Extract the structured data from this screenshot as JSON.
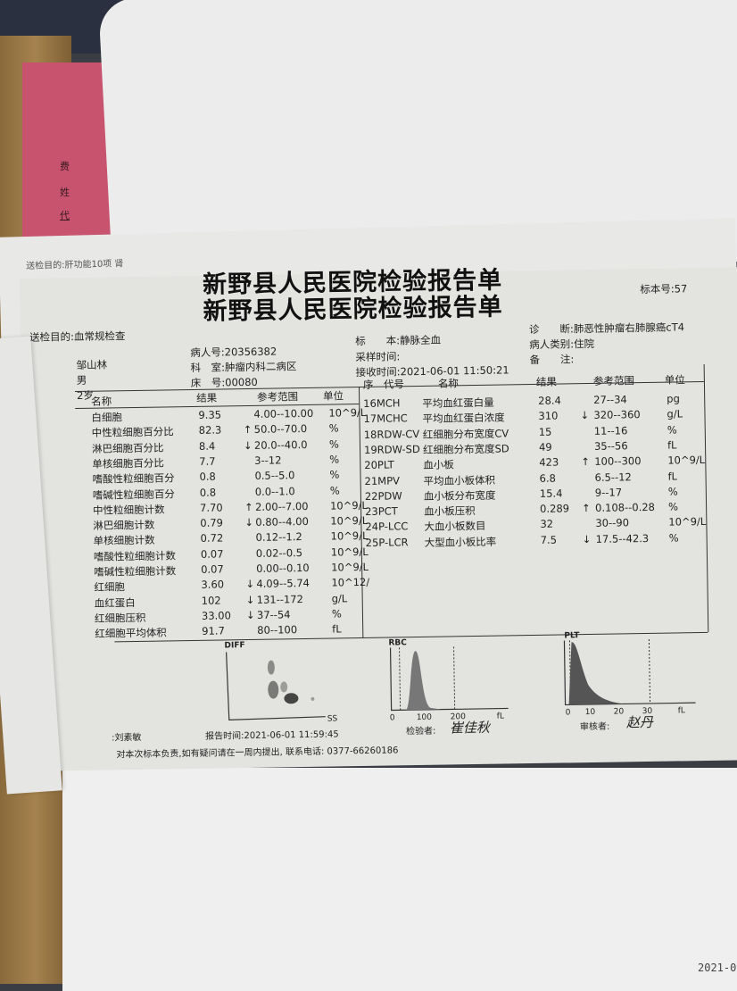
{
  "background": {
    "pink_folder_chars": [
      "费",
      "姓",
      "代"
    ],
    "back_sheet_purpose": "送检目的:肝功能10项 肾",
    "bottom_corner_date": "2021-0"
  },
  "report": {
    "title": "新野县人民医院检验报告单",
    "specimen_no": "标本号:57",
    "purpose": "送检目的:血常规检查",
    "patient": {
      "name": "邹山林",
      "sex": "男",
      "age": "2岁"
    },
    "patient_id": "病人号:20356382",
    "department": "科　室:肿瘤内科二病区",
    "bed": "床　号:00080",
    "specimen": "标　　本:静脉全血",
    "sampling_time": "采样时间:",
    "receive_time": "接收时间:2021-06-01 11:50:21",
    "diagnosis": "诊　　断:肺恶性肿瘤右肺腺癌cT4",
    "patient_type": "病人类别:住院",
    "remark": "备　　注:",
    "left_table": {
      "headers": {
        "name": "名称",
        "result": "结果",
        "range": "参考范围",
        "unit": "单位"
      },
      "rows": [
        {
          "name": "白细胞",
          "result": "9.35",
          "flag": "",
          "range": "4.00--10.00",
          "unit": "10^9/L"
        },
        {
          "name": "中性粒细胞百分比",
          "result": "82.3",
          "flag": "↑",
          "range": "50.0--70.0",
          "unit": "%"
        },
        {
          "name": "淋巴细胞百分比",
          "result": "8.4",
          "flag": "↓",
          "range": "20.0--40.0",
          "unit": "%"
        },
        {
          "name": "单核细胞百分比",
          "result": "7.7",
          "flag": "",
          "range": "3--12",
          "unit": "%"
        },
        {
          "name": "嗜酸性粒细胞百分",
          "result": "0.8",
          "flag": "",
          "range": "0.5--5.0",
          "unit": "%"
        },
        {
          "name": "嗜碱性粒细胞百分",
          "result": "0.8",
          "flag": "",
          "range": "0.0--1.0",
          "unit": "%"
        },
        {
          "name": "中性粒细胞计数",
          "result": "7.70",
          "flag": "↑",
          "range": "2.00--7.00",
          "unit": "10^9/L"
        },
        {
          "name": "淋巴细胞计数",
          "result": "0.79",
          "flag": "↓",
          "range": "0.80--4.00",
          "unit": "10^9/L"
        },
        {
          "name": "单核细胞计数",
          "result": "0.72",
          "flag": "",
          "range": "0.12--1.2",
          "unit": "10^9/L"
        },
        {
          "name": "嗜酸性粒细胞计数",
          "result": "0.07",
          "flag": "",
          "range": "0.02--0.5",
          "unit": "10^9/L"
        },
        {
          "name": "嗜碱性粒细胞计数",
          "result": "0.07",
          "flag": "",
          "range": "0.00--0.10",
          "unit": "10^9/L"
        },
        {
          "name": "红细胞",
          "result": "3.60",
          "flag": "↓",
          "range": "4.09--5.74",
          "unit": "10^12/"
        },
        {
          "name": "血红蛋白",
          "result": "102",
          "flag": "↓",
          "range": "131--172",
          "unit": "g/L"
        },
        {
          "name": "红细胞压积",
          "result": "33.00",
          "flag": "↓",
          "range": "37--54",
          "unit": "%"
        },
        {
          "name": "红细胞平均体积",
          "result": "91.7",
          "flag": "",
          "range": "80--100",
          "unit": "fL"
        }
      ]
    },
    "right_table": {
      "headers": {
        "code": "序　代号",
        "name": "名称",
        "result": "结果",
        "range": "参考范围",
        "unit": "单位"
      },
      "rows": [
        {
          "code": "16MCH",
          "name": "平均血红蛋白量",
          "result": "28.4",
          "flag": "",
          "range": "27--34",
          "unit": "pg"
        },
        {
          "code": "17MCHC",
          "name": "平均血红蛋白浓度",
          "result": "310",
          "flag": "↓",
          "range": "320--360",
          "unit": "g/L"
        },
        {
          "code": "18RDW-CV",
          "name": "红细胞分布宽度CV",
          "result": "15",
          "flag": "",
          "range": "11--16",
          "unit": "%"
        },
        {
          "code": "19RDW-SD",
          "name": "红细胞分布宽度SD",
          "result": "49",
          "flag": "",
          "range": "35--56",
          "unit": "fL"
        },
        {
          "code": "20PLT",
          "name": "血小板",
          "result": "423",
          "flag": "↑",
          "range": "100--300",
          "unit": "10^9/L"
        },
        {
          "code": "21MPV",
          "name": "平均血小板体积",
          "result": "6.8",
          "flag": "",
          "range": "6.5--12",
          "unit": "fL"
        },
        {
          "code": "22PDW",
          "name": "血小板分布宽度",
          "result": "15.4",
          "flag": "",
          "range": "9--17",
          "unit": "%"
        },
        {
          "code": "23PCT",
          "name": "血小板压积",
          "result": "0.289",
          "flag": "↑",
          "range": "0.108--0.28",
          "unit": "%"
        },
        {
          "code": "24P-LCC",
          "name": "大血小板数目",
          "result": "32",
          "flag": "",
          "range": "30--90",
          "unit": "10^9/L"
        },
        {
          "code": "25P-LCR",
          "name": "大型血小板比率",
          "result": "7.5",
          "flag": "↓",
          "range": "17.5--42.3",
          "unit": "%"
        }
      ]
    },
    "graphs": {
      "diff": {
        "label": "DIFF",
        "x_label": "SS"
      },
      "rbc": {
        "label": "RBC",
        "ticks": [
          "0",
          "100",
          "200"
        ],
        "unit": "fL"
      },
      "plt": {
        "label": "PLT",
        "ticks": [
          "0",
          "10",
          "20",
          "30"
        ],
        "unit": "fL"
      }
    },
    "footer": {
      "sender": ":刘素敏",
      "report_time": "报告时间:2021-06-01 11:59:45",
      "tester_label": "检验者:",
      "tester_signature": "崔佳秋",
      "reviewer_label": "审核者:",
      "reviewer_signature": "赵丹",
      "disclaimer": "对本次标本负责,如有疑问请在一周内提出, 联系电话: 0377-66260186"
    }
  }
}
